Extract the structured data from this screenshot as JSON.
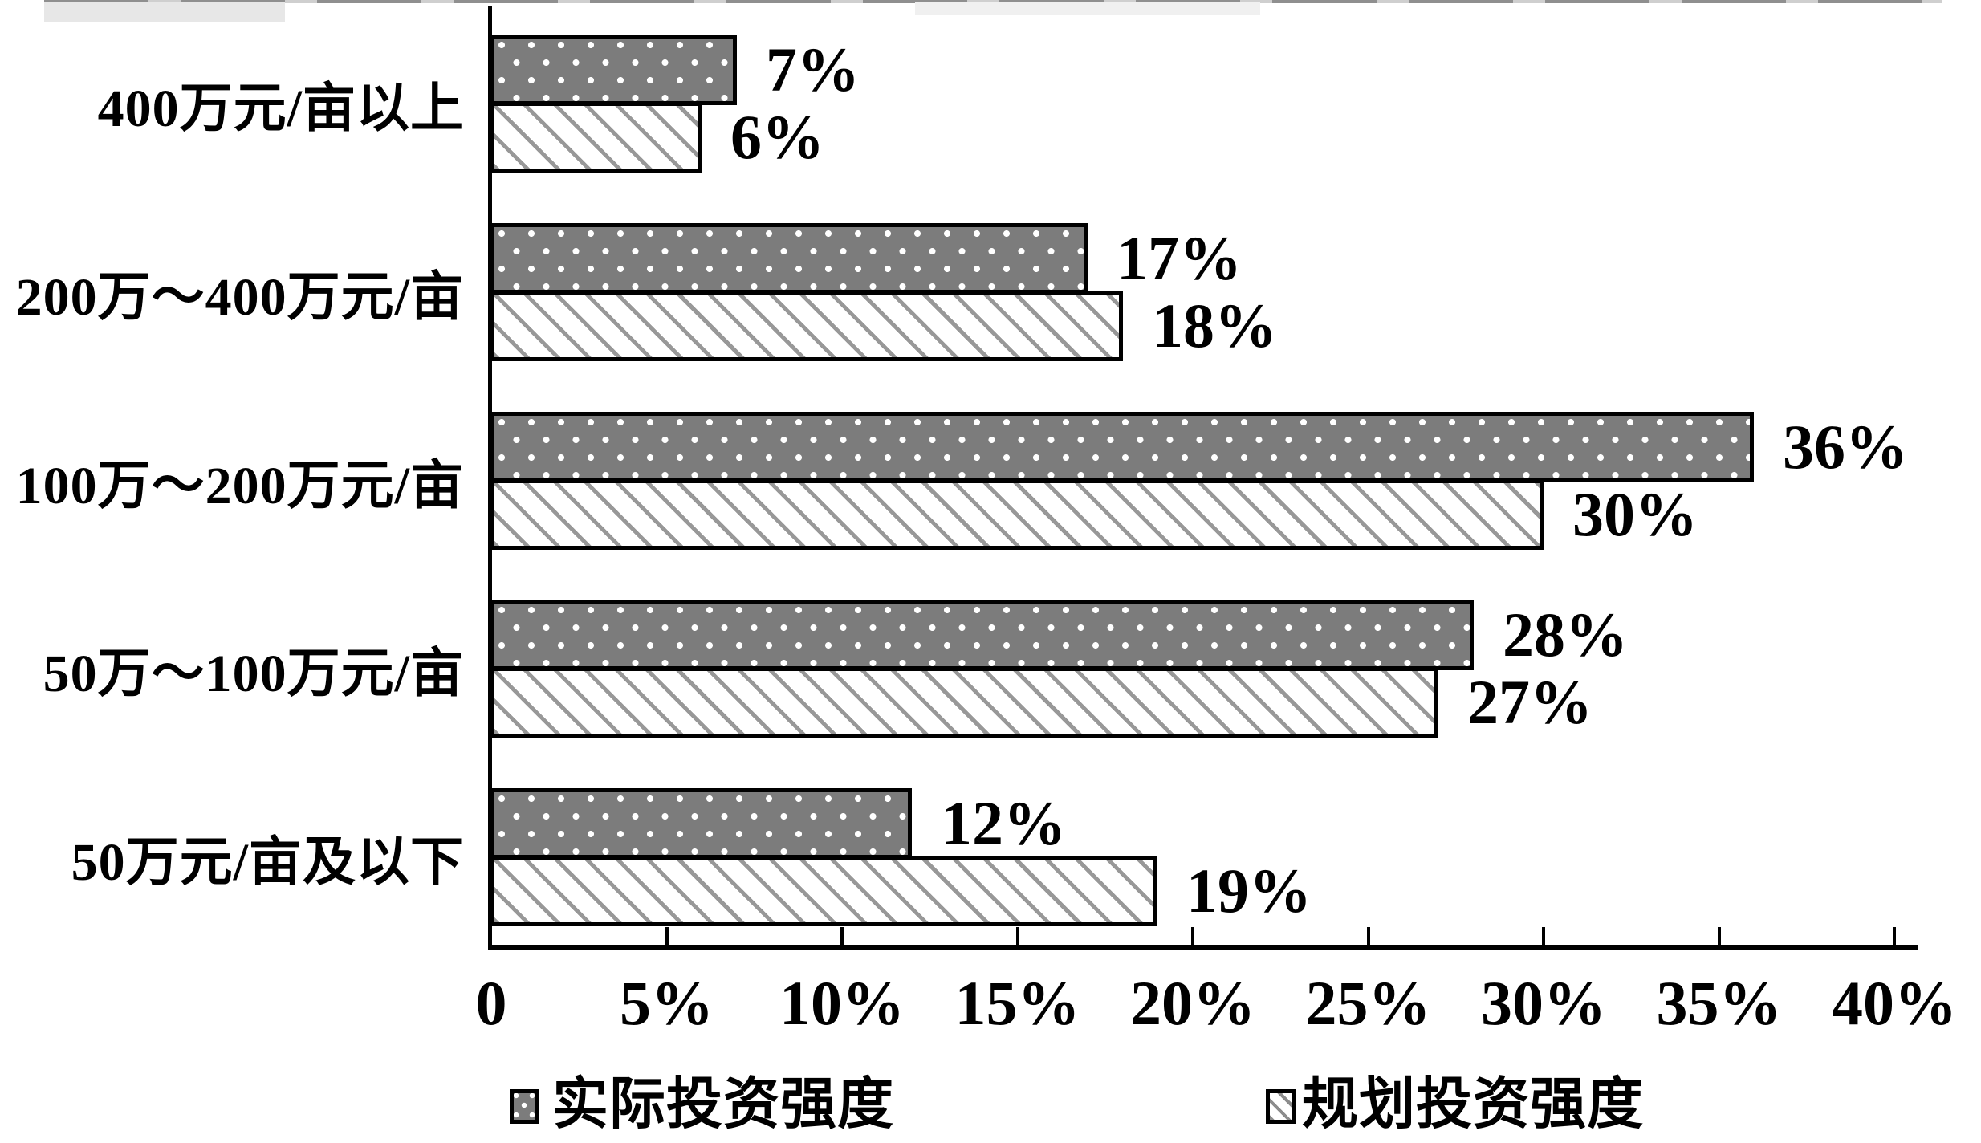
{
  "chart_data": {
    "type": "bar",
    "orientation": "horizontal",
    "title": "",
    "xlabel": "",
    "ylabel": "",
    "grid": false,
    "legend_position": "bottom",
    "categories": [
      "400万元/亩以上",
      "200万～400万元/亩",
      "100万～200万元/亩",
      "50万～100万元/亩",
      "50万元/亩及以下"
    ],
    "series": [
      {
        "name": "实际投资强度",
        "pattern": "dots",
        "values": [
          7,
          17,
          36,
          28,
          12
        ]
      },
      {
        "name": "规划投资强度",
        "pattern": "hatch",
        "values": [
          6,
          18,
          30,
          27,
          19
        ]
      }
    ],
    "data_labels": [
      [
        "7%",
        "6%"
      ],
      [
        "17%",
        "18%"
      ],
      [
        "36%",
        "30%"
      ],
      [
        "28%",
        "27%"
      ],
      [
        "12%",
        "19%"
      ]
    ],
    "x_axis": {
      "min": 0,
      "max": 40,
      "tick_step": 5,
      "tick_labels": [
        "0",
        "5%",
        "10%",
        "15%",
        "20%",
        "25%",
        "30%",
        "35%",
        "40%"
      ]
    },
    "legend": [
      {
        "label": "实际投资强度",
        "pattern": "dots"
      },
      {
        "label": "规划投资强度",
        "pattern": "hatch"
      }
    ],
    "colors": {
      "background": "#ffffff",
      "bar_fill_actual": "#7c7c7c",
      "bar_dot": "#ffffff",
      "hatch_line": "#989898",
      "hatch_background": "#ffffff",
      "bar_border": "#000000",
      "text": "#000000"
    }
  }
}
